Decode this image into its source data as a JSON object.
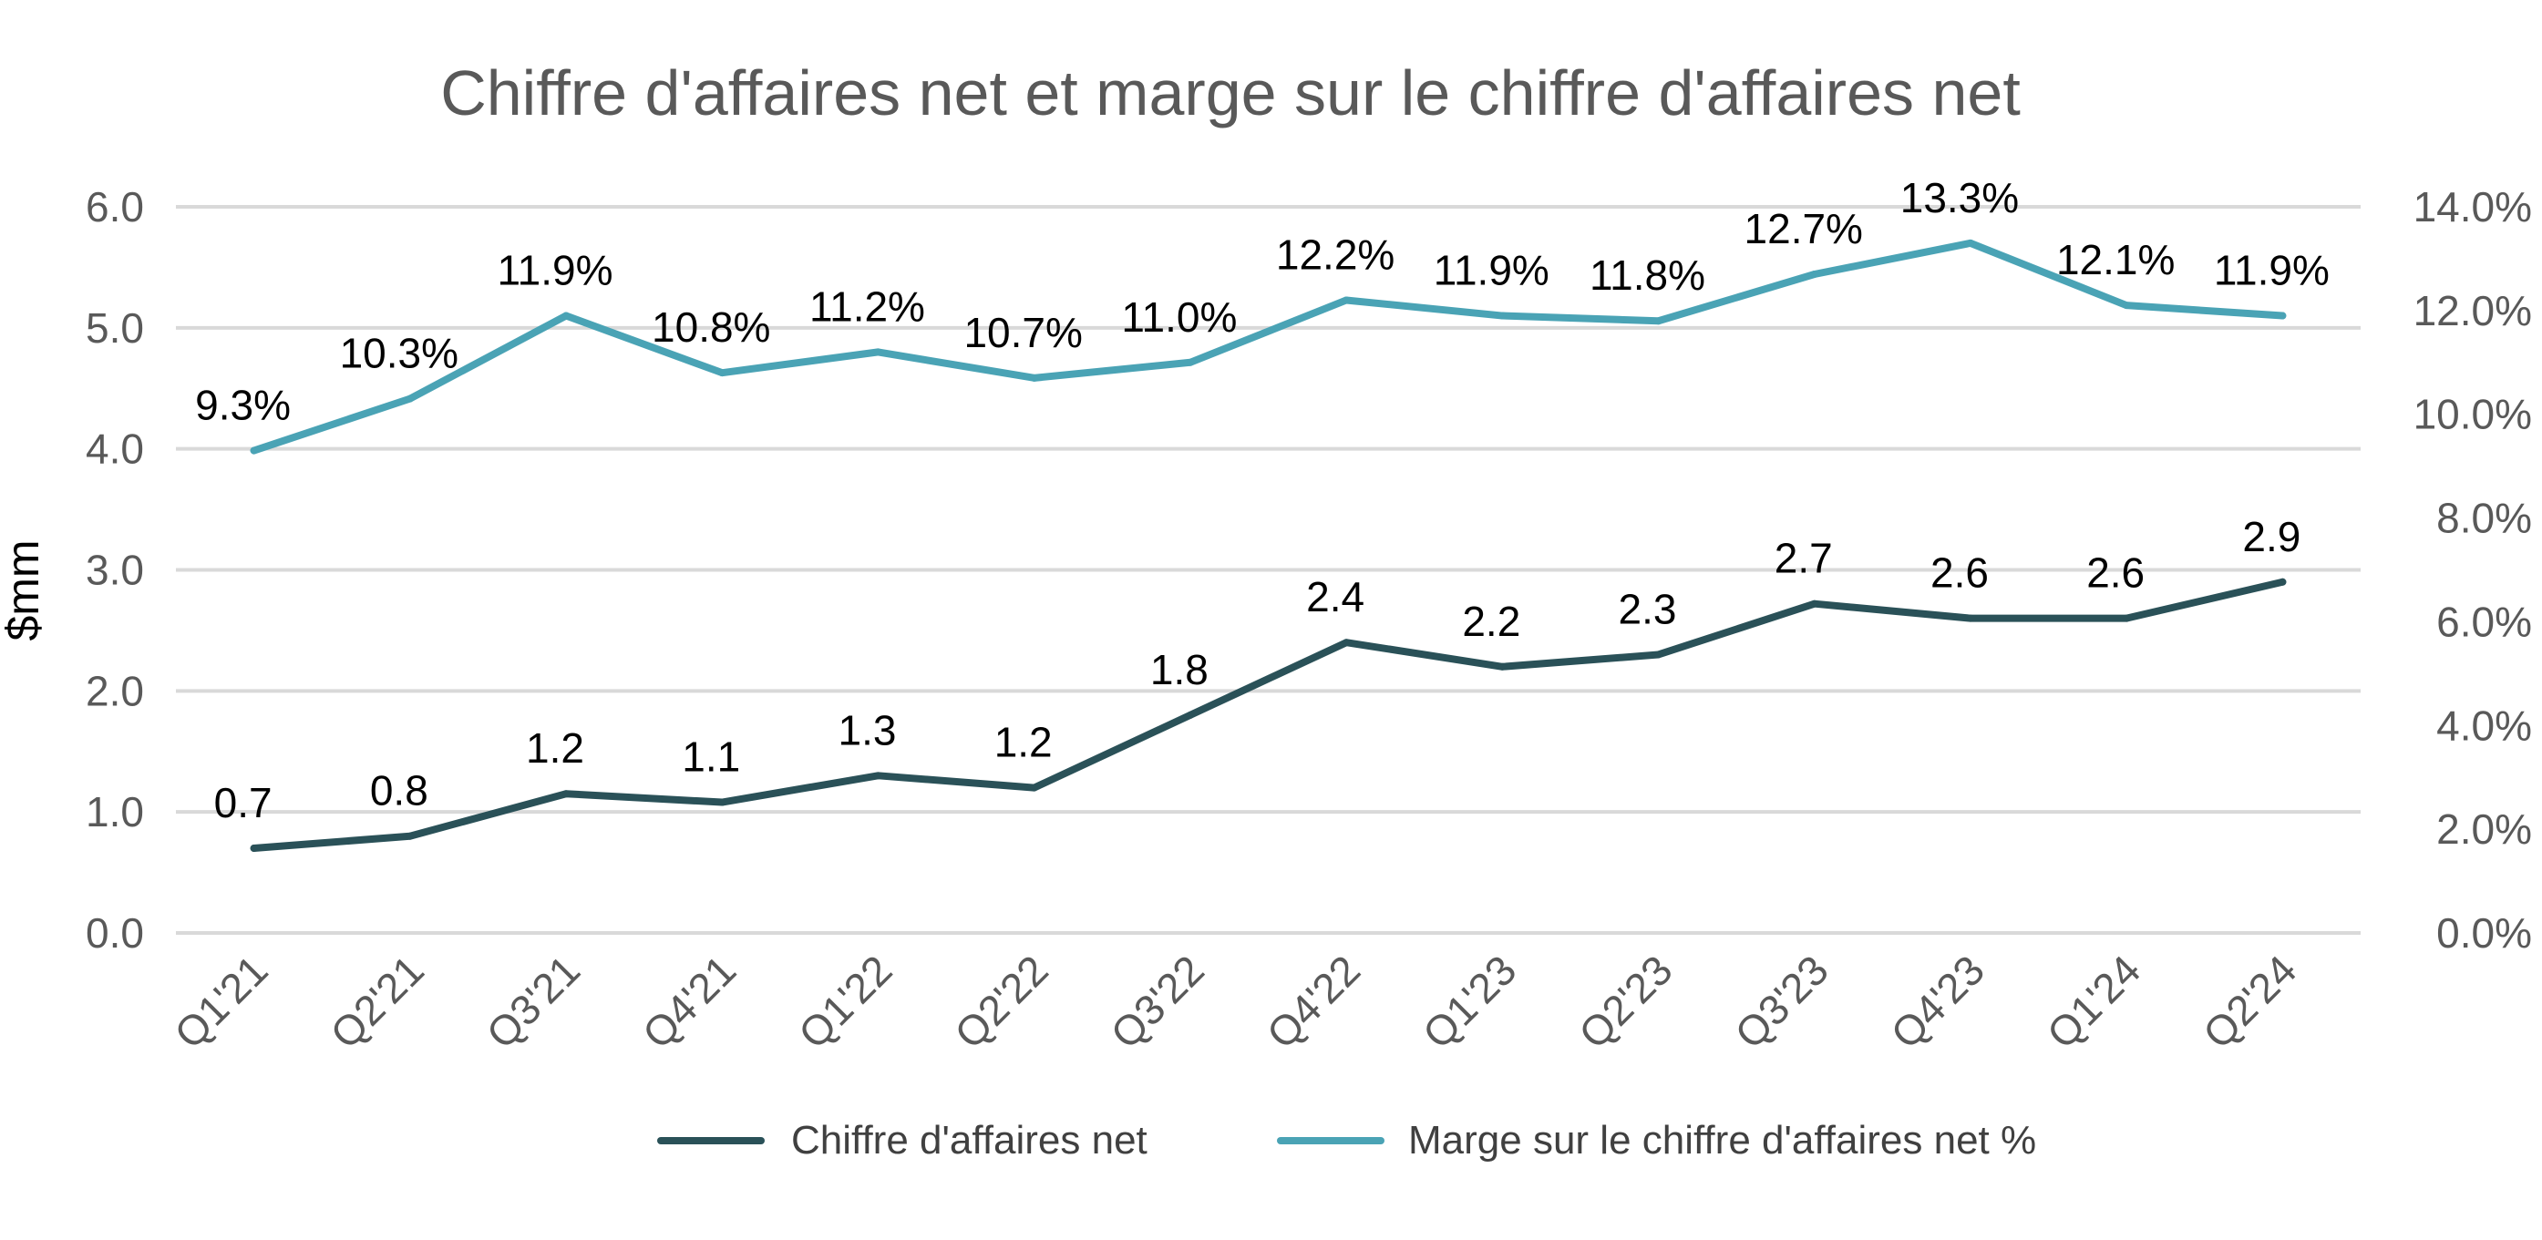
{
  "chart_data": {
    "type": "line",
    "title": "Chiffre d'affaires net et marge sur le chiffre d'affaires net",
    "categories": [
      "Q1'21",
      "Q2'21",
      "Q3'21",
      "Q4'21",
      "Q1'22",
      "Q2'22",
      "Q3'22",
      "Q4'22",
      "Q1'23",
      "Q2'23",
      "Q3'23",
      "Q4'23",
      "Q1'24",
      "Q2'24"
    ],
    "ylabel": "$mm",
    "ylim": [
      0,
      6
    ],
    "y_ticks": [
      "0.0",
      "1.0",
      "2.0",
      "3.0",
      "4.0",
      "5.0",
      "6.0"
    ],
    "y2lim": [
      0,
      14
    ],
    "y2_ticks": [
      "0.0%",
      "2.0%",
      "4.0%",
      "6.0%",
      "8.0%",
      "10.0%",
      "12.0%",
      "14.0%"
    ],
    "grid": true,
    "legend_position": "bottom",
    "series": [
      {
        "name": "Chiffre d'affaires net",
        "axis": "left",
        "color": "#2a5158",
        "values": [
          0.7,
          0.8,
          1.15,
          1.08,
          1.3,
          1.2,
          1.8,
          2.4,
          2.2,
          2.3,
          2.72,
          2.6,
          2.6,
          2.9
        ],
        "labels": [
          "0.7",
          "0.8",
          "1.2",
          "1.1",
          "1.3",
          "1.2",
          "1.8",
          "2.4",
          "2.2",
          "2.3",
          "2.7",
          "2.6",
          "2.6",
          "2.9"
        ]
      },
      {
        "name": "Marge sur le chiffre d'affaires net %",
        "axis": "right",
        "color": "#4aa3b5",
        "values": [
          9.3,
          10.3,
          11.9,
          10.8,
          11.2,
          10.7,
          11.0,
          12.2,
          11.9,
          11.8,
          12.7,
          13.3,
          12.1,
          11.9
        ],
        "labels": [
          "9.3%",
          "10.3%",
          "11.9%",
          "10.8%",
          "11.2%",
          "10.7%",
          "11.0%",
          "12.2%",
          "11.9%",
          "11.8%",
          "12.7%",
          "13.3%",
          "12.1%",
          "11.9%"
        ]
      }
    ]
  }
}
